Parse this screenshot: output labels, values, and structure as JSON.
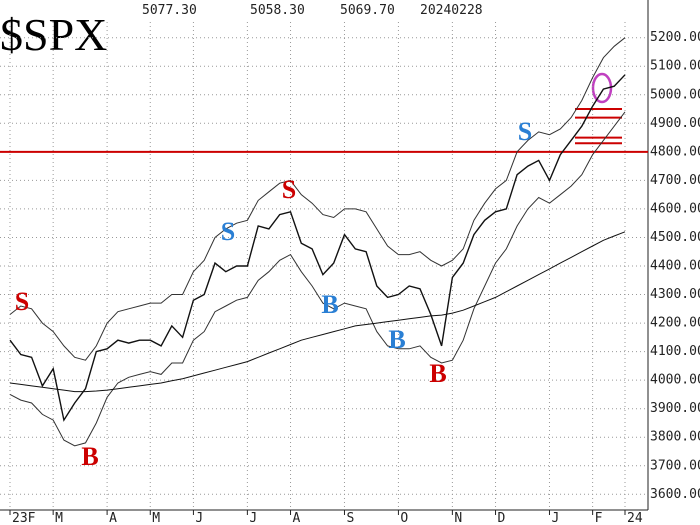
{
  "chart_data": {
    "type": "line",
    "title": "$SPX",
    "header": [
      "5077.30",
      "5058.30",
      "5069.70",
      "20240228"
    ],
    "categories": [
      "23F",
      null,
      null,
      null,
      "M",
      null,
      null,
      null,
      null,
      "A",
      null,
      null,
      null,
      "M",
      null,
      null,
      null,
      "J",
      null,
      null,
      null,
      null,
      "J",
      null,
      null,
      null,
      "A",
      null,
      null,
      null,
      null,
      "S",
      null,
      null,
      null,
      null,
      "O",
      null,
      null,
      null,
      null,
      "N",
      null,
      null,
      null,
      "D",
      null,
      null,
      null,
      null,
      "J",
      null,
      null,
      null,
      "F",
      null,
      null,
      "24"
    ],
    "series": [
      {
        "name": "price",
        "color": "#111111",
        "width": 1.4,
        "values": [
          4140,
          4090,
          4080,
          3980,
          4040,
          3860,
          3920,
          3970,
          4100,
          4110,
          4140,
          4130,
          4140,
          4140,
          4120,
          4190,
          4150,
          4280,
          4300,
          4410,
          4380,
          4400,
          4400,
          4540,
          4530,
          4580,
          4590,
          4480,
          4460,
          4370,
          4410,
          4510,
          4460,
          4450,
          4330,
          4290,
          4300,
          4330,
          4320,
          4230,
          4120,
          4360,
          4410,
          4510,
          4560,
          4590,
          4600,
          4720,
          4750,
          4770,
          4700,
          4790,
          4840,
          4890,
          4960,
          5020,
          5030,
          5070
        ]
      },
      {
        "name": "upper band",
        "color": "#333333",
        "width": 1,
        "values": [
          4230,
          4260,
          4250,
          4200,
          4170,
          4120,
          4080,
          4070,
          4120,
          4200,
          4240,
          4250,
          4260,
          4270,
          4270,
          4300,
          4300,
          4380,
          4420,
          4500,
          4530,
          4550,
          4560,
          4630,
          4660,
          4690,
          4700,
          4650,
          4620,
          4580,
          4570,
          4600,
          4600,
          4590,
          4530,
          4470,
          4440,
          4440,
          4450,
          4420,
          4400,
          4420,
          4460,
          4560,
          4620,
          4670,
          4700,
          4800,
          4840,
          4870,
          4860,
          4880,
          4920,
          4980,
          5060,
          5130,
          5170,
          5200
        ]
      },
      {
        "name": "lower band",
        "color": "#333333",
        "width": 1,
        "values": [
          3950,
          3930,
          3920,
          3880,
          3860,
          3790,
          3770,
          3780,
          3850,
          3940,
          3990,
          4010,
          4020,
          4030,
          4020,
          4060,
          4060,
          4140,
          4170,
          4240,
          4260,
          4280,
          4290,
          4350,
          4380,
          4420,
          4440,
          4380,
          4330,
          4270,
          4250,
          4270,
          4260,
          4250,
          4170,
          4120,
          4110,
          4110,
          4120,
          4080,
          4060,
          4070,
          4140,
          4250,
          4330,
          4410,
          4460,
          4540,
          4600,
          4640,
          4620,
          4650,
          4680,
          4720,
          4790,
          4840,
          4890,
          4940
        ]
      },
      {
        "name": "moving average",
        "color": "#111111",
        "width": 1,
        "values": [
          3990,
          3985,
          3980,
          3975,
          3970,
          3965,
          3960,
          3960,
          3962,
          3965,
          3970,
          3975,
          3980,
          3985,
          3990,
          3998,
          4005,
          4015,
          4025,
          4035,
          4045,
          4055,
          4065,
          4080,
          4095,
          4110,
          4125,
          4140,
          4150,
          4160,
          4170,
          4180,
          4190,
          4195,
          4200,
          4205,
          4210,
          4215,
          4220,
          4225,
          4228,
          4235,
          4245,
          4260,
          4275,
          4290,
          4310,
          4330,
          4350,
          4370,
          4390,
          4410,
          4430,
          4450,
          4470,
          4490,
          4505,
          4520
        ]
      }
    ],
    "ylim": [
      3545,
      5255
    ],
    "yticks": [
      {
        "value": 3600,
        "label": "3600.00"
      },
      {
        "value": 3700,
        "label": "3700.00"
      },
      {
        "value": 3800,
        "label": "3800.00"
      },
      {
        "value": 3900,
        "label": "3900.00"
      },
      {
        "value": 4000,
        "label": "4000.00"
      },
      {
        "value": 4100,
        "label": "4100.00"
      },
      {
        "value": 4200,
        "label": "4200.00"
      },
      {
        "value": 4300,
        "label": "4300.00"
      },
      {
        "value": 4400,
        "label": "4400.00"
      },
      {
        "value": 4500,
        "label": "4500.00"
      },
      {
        "value": 4600,
        "label": "4600.00"
      },
      {
        "value": 4700,
        "label": "4700.00"
      },
      {
        "value": 4800,
        "label": "4800.00"
      },
      {
        "value": 4900,
        "label": "4900.00"
      },
      {
        "value": 5000,
        "label": "5000.00"
      },
      {
        "value": 5100,
        "label": "5100.00"
      },
      {
        "value": 5200,
        "label": "5200.00"
      }
    ],
    "grid": true,
    "hline": {
      "value": 4800,
      "color": "#cc0000"
    },
    "levels": [
      4950,
      4920,
      4850,
      4830
    ],
    "annotations": [
      {
        "text": "S",
        "color": "#cc0000"
      },
      {
        "text": "B",
        "color": "#cc0000"
      },
      {
        "text": "S",
        "color": "#2a7fd4"
      },
      {
        "text": "S",
        "color": "#cc0000"
      },
      {
        "text": "B",
        "color": "#2a7fd4"
      },
      {
        "text": "B",
        "color": "#2a7fd4"
      },
      {
        "text": "B",
        "color": "#cc0000"
      },
      {
        "text": "S",
        "color": "#2a7fd4"
      }
    ]
  }
}
